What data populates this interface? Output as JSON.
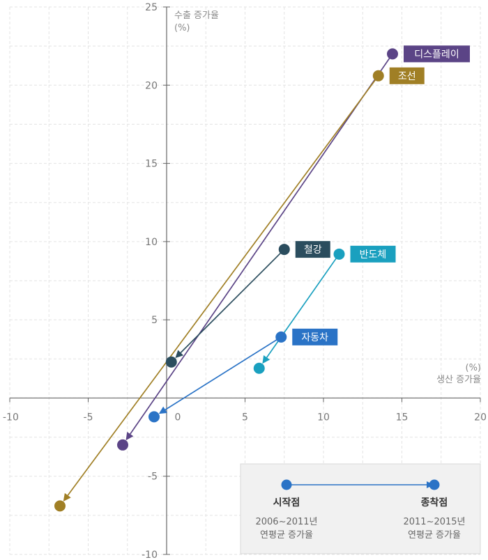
{
  "chart_data": {
    "type": "scatter",
    "title": "",
    "xlabel": "(%)\n생산 증가율",
    "ylabel": "수출 증가율\n(%)",
    "xlim": [
      -10,
      20
    ],
    "ylim": [
      -10,
      25
    ],
    "xticks": [
      "-10",
      "-5",
      "0",
      "5",
      "10",
      "15",
      "20"
    ],
    "yticks": [
      "-10",
      "-5",
      "5",
      "10",
      "15",
      "20",
      "25"
    ],
    "grid": true,
    "series": [
      {
        "name": "디스플레이",
        "color": "#5b4486",
        "start": [
          14.4,
          22.0
        ],
        "end": [
          -2.8,
          -3.0
        ]
      },
      {
        "name": "조선",
        "color": "#a07f25",
        "start": [
          13.5,
          20.6
        ],
        "end": [
          -6.8,
          -6.9
        ]
      },
      {
        "name": "철강",
        "color": "#2b4d5e",
        "start": [
          7.5,
          9.5
        ],
        "end": [
          0.3,
          2.3
        ]
      },
      {
        "name": "반도체",
        "color": "#1aa0bf",
        "start": [
          11.0,
          9.2
        ],
        "end": [
          5.9,
          1.9
        ]
      },
      {
        "name": "자동차",
        "color": "#2a73c6",
        "start": [
          7.3,
          3.9
        ],
        "end": [
          -0.8,
          -1.2
        ]
      }
    ],
    "legend": {
      "start_label": "시작점",
      "start_period": "2006~2011년",
      "start_desc": "연평균 증가율",
      "end_label": "종착점",
      "end_period": "2011~2015년",
      "end_desc": "연평균 증가율",
      "color": "#2a73c6",
      "placement": "bottom-right"
    }
  }
}
